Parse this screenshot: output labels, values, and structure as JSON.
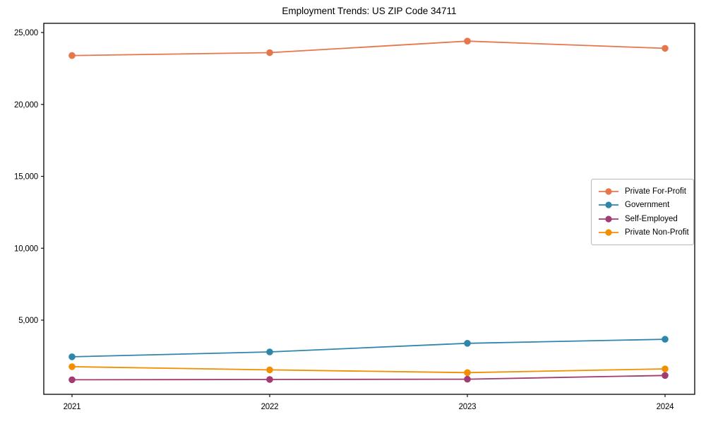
{
  "figure": {
    "title": "Employment Trends: US ZIP Code 34711"
  },
  "chart_data": {
    "type": "line",
    "title": "Employment Trends: US ZIP Code 34711",
    "xlabel": "",
    "ylabel": "",
    "x": [
      2021,
      2022,
      2023,
      2024
    ],
    "xtick_labels": [
      "2021",
      "2022",
      "2023",
      "2024"
    ],
    "yticks": [
      5000,
      10000,
      15000,
      20000,
      25000
    ],
    "ytick_labels": [
      "5,000",
      "10,000",
      "15,000",
      "20,000",
      "25,000"
    ],
    "ylim": [
      -160,
      25640
    ],
    "grid": false,
    "legend_position": "center right",
    "marker": "circle",
    "series": [
      {
        "name": "Private For-Profit",
        "color": "#E8764B",
        "values": [
          23400,
          23600,
          24400,
          23900
        ]
      },
      {
        "name": "Government",
        "color": "#2E86AB",
        "values": [
          2450,
          2790,
          3390,
          3670
        ]
      },
      {
        "name": "Self-Employed",
        "color": "#A23B72",
        "values": [
          850,
          870,
          890,
          1150
        ]
      },
      {
        "name": "Private Non-Profit",
        "color": "#F18F01",
        "values": [
          1760,
          1540,
          1350,
          1610
        ]
      }
    ]
  }
}
